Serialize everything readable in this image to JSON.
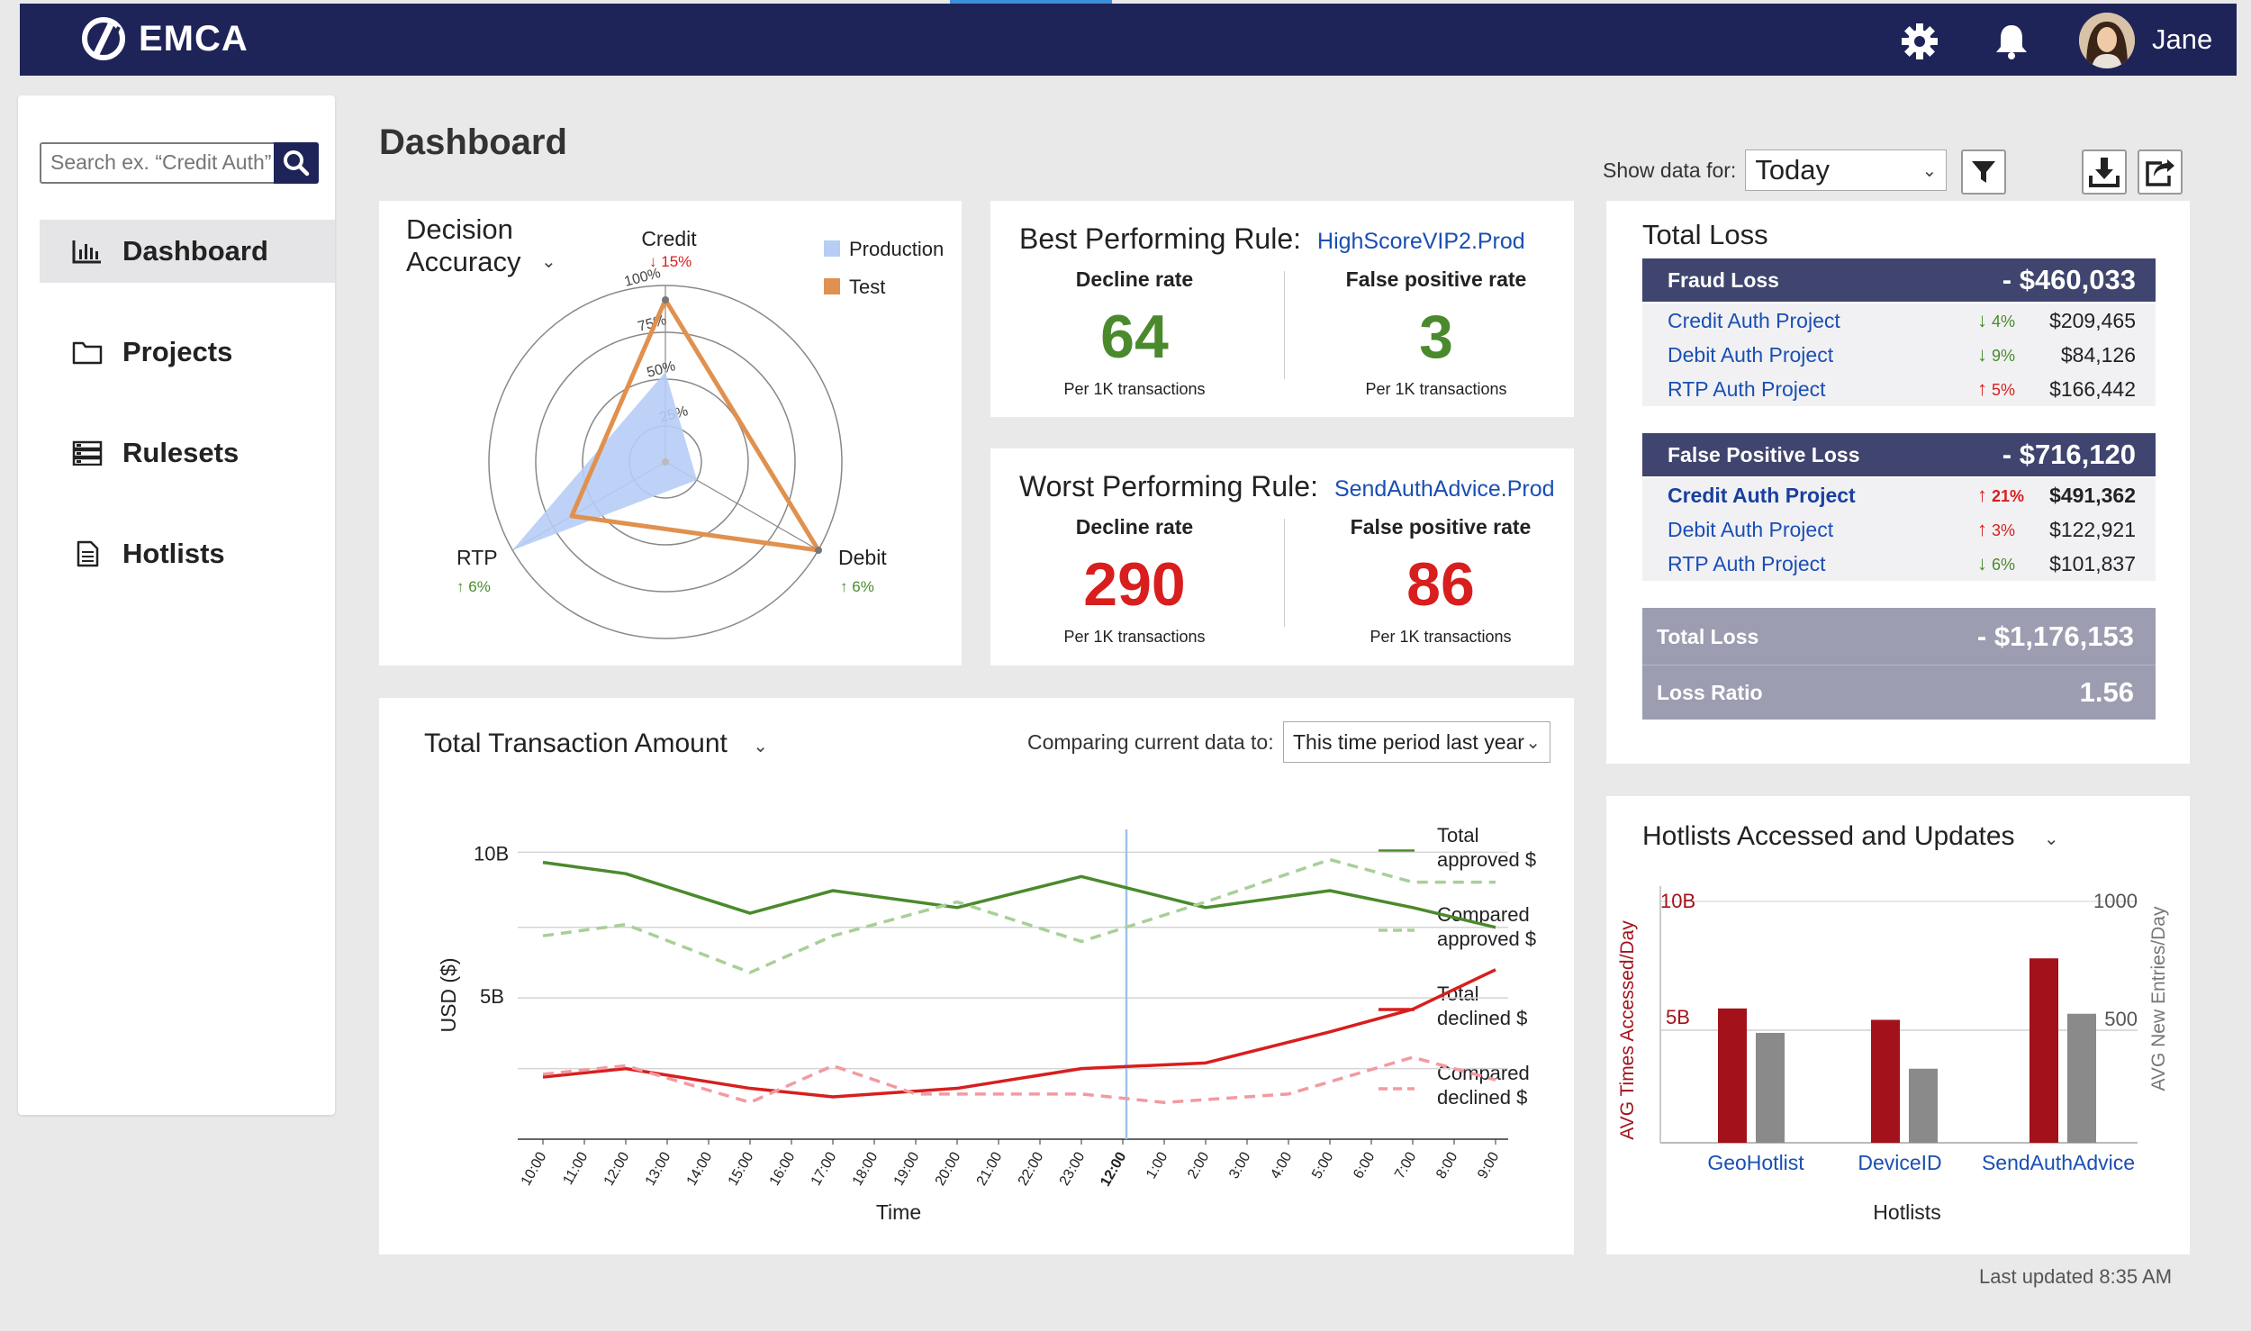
{
  "app": {
    "name": "EMCA",
    "user": "Jane"
  },
  "sidebar": {
    "search_placeholder": "Search ex. “Credit Auth”",
    "items": [
      {
        "label": "Dashboard"
      },
      {
        "label": "Projects"
      },
      {
        "label": "Rulesets"
      },
      {
        "label": "Hotlists"
      }
    ]
  },
  "page": {
    "title": "Dashboard",
    "footer": "Last updated 8:35 AM"
  },
  "filters": {
    "show_data_label": "Show data for:",
    "period": "Today"
  },
  "decision_accuracy": {
    "title": "Decision Accuracy",
    "axes": [
      {
        "name": "Credit",
        "change": "15%",
        "direction": "down"
      },
      {
        "name": "Debit",
        "change": "6%",
        "direction": "up"
      },
      {
        "name": "RTP",
        "change": "6%",
        "direction": "up"
      }
    ],
    "ticks": [
      "25%",
      "50%",
      "75%",
      "100%"
    ],
    "legend": [
      {
        "name": "Production",
        "color": "#b7cdf6"
      },
      {
        "name": "Test",
        "color": "#e0914f"
      }
    ],
    "chart_data": {
      "type": "radar",
      "axes": [
        "Credit",
        "Debit",
        "RTP"
      ],
      "series": [
        {
          "name": "Production",
          "values": [
            0.6,
            0.2,
            1.0
          ]
        },
        {
          "name": "Test",
          "values": [
            0.95,
            1.0,
            0.6
          ]
        }
      ]
    }
  },
  "best_rule": {
    "title": "Best Performing Rule:",
    "rule": "HighScoreVIP2.Prod",
    "metrics": [
      {
        "label": "Decline rate",
        "value": "64",
        "sub": "Per 1K transactions",
        "color": "#4a8a2c"
      },
      {
        "label": "False positive rate",
        "value": "3",
        "sub": "Per 1K transactions",
        "color": "#4a8a2c"
      }
    ]
  },
  "worst_rule": {
    "title": "Worst Performing Rule:",
    "rule": "SendAuthAdvice.Prod",
    "metrics": [
      {
        "label": "Decline rate",
        "value": "290",
        "sub": "Per 1K transactions",
        "color": "#d81e1e"
      },
      {
        "label": "False positive rate",
        "value": "86",
        "sub": "Per 1K transactions",
        "color": "#d81e1e"
      }
    ]
  },
  "total_loss": {
    "title": "Total Loss",
    "fraud": {
      "label": "Fraud Loss",
      "value": "- $460,033",
      "rows": [
        {
          "project": "Credit Auth Project",
          "dir": "down",
          "pct": "4%",
          "amount": "$209,465"
        },
        {
          "project": "Debit Auth Project",
          "dir": "down",
          "pct": "9%",
          "amount": "$84,126"
        },
        {
          "project": "RTP Auth Project",
          "dir": "up",
          "pct": "5%",
          "amount": "$166,442"
        }
      ]
    },
    "false_positive": {
      "label": "False Positive Loss",
      "value": "- $716,120",
      "rows": [
        {
          "project": "Credit Auth Project",
          "dir": "up",
          "pct": "21%",
          "amount": "$491,362"
        },
        {
          "project": "Debit Auth Project",
          "dir": "up",
          "pct": "3%",
          "amount": "$122,921"
        },
        {
          "project": "RTP Auth Project",
          "dir": "down",
          "pct": "6%",
          "amount": "$101,837"
        }
      ]
    },
    "total_label": "Total Loss",
    "total_value": "- $1,176,153",
    "ratio_label": "Loss Ratio",
    "ratio_value": "1.56"
  },
  "transactions": {
    "title": "Total Transaction Amount",
    "compare_label": "Comparing current data to:",
    "compare_value": "This time period last year",
    "chart_data": {
      "type": "line",
      "xlabel": "Time",
      "ylabel": "USD ($)",
      "yticks": [
        "10B",
        "5B"
      ],
      "ylim": [
        0,
        11
      ],
      "x": [
        "10:00",
        "11:00",
        "12:00",
        "13:00",
        "14:00",
        "15:00",
        "16:00",
        "17:00",
        "18:00",
        "19:00",
        "20:00",
        "21:00",
        "22:00",
        "23:00",
        "12:00",
        "1:00",
        "2:00",
        "3:00",
        "4:00",
        "5:00",
        "6:00",
        "7:00",
        "8:00",
        "9:00"
      ],
      "x_bold_label": "12:00",
      "marker_x": "12:00",
      "series": [
        {
          "name": "Total approved $",
          "color": "#4a8a2c",
          "dashed": false,
          "points": [
            [
              "10:00",
              9.8
            ],
            [
              "12:00",
              9.4
            ],
            [
              "15:00",
              8.0
            ],
            [
              "17:00",
              8.8
            ],
            [
              "20:00",
              8.2
            ],
            [
              "23:00",
              9.3
            ],
            [
              "2:00",
              8.2
            ],
            [
              "5:00",
              8.8
            ],
            [
              "7:00",
              8.2
            ],
            [
              "9:00",
              7.5
            ]
          ]
        },
        {
          "name": "Compared approved $",
          "color": "#a9cf97",
          "dashed": true,
          "points": [
            [
              "10:00",
              7.2
            ],
            [
              "12:00",
              7.6
            ],
            [
              "15:00",
              5.9
            ],
            [
              "17:00",
              7.2
            ],
            [
              "20:00",
              8.4
            ],
            [
              "23:00",
              7.0
            ],
            [
              "2:00",
              8.4
            ],
            [
              "5:00",
              9.9
            ],
            [
              "7:00",
              9.1
            ],
            [
              "9:00",
              9.1
            ]
          ]
        },
        {
          "name": "Total declined $",
          "color": "#d81e1e",
          "dashed": false,
          "points": [
            [
              "10:00",
              2.2
            ],
            [
              "12:00",
              2.5
            ],
            [
              "15:00",
              1.8
            ],
            [
              "17:00",
              1.5
            ],
            [
              "20:00",
              1.8
            ],
            [
              "23:00",
              2.5
            ],
            [
              "2:00",
              2.7
            ],
            [
              "5:00",
              3.8
            ],
            [
              "7:00",
              4.6
            ],
            [
              "9:00",
              6.0
            ]
          ]
        },
        {
          "name": "Compared declined $",
          "color": "#f29aa0",
          "dashed": true,
          "points": [
            [
              "10:00",
              2.3
            ],
            [
              "12:00",
              2.6
            ],
            [
              "15:00",
              1.3
            ],
            [
              "17:00",
              2.6
            ],
            [
              "19:00",
              1.6
            ],
            [
              "23:00",
              1.6
            ],
            [
              "1:00",
              1.3
            ],
            [
              "4:00",
              1.6
            ],
            [
              "7:00",
              2.9
            ],
            [
              "9:00",
              2.1
            ]
          ]
        }
      ]
    },
    "legend": [
      {
        "line1": "Total",
        "line2": "approved $"
      },
      {
        "line1": "Compared",
        "line2": "approved $"
      },
      {
        "line1": "Total",
        "line2": "declined $"
      },
      {
        "line1": "Compared",
        "line2": "declined $"
      }
    ]
  },
  "hotlists": {
    "title": "Hotlists Accessed and Updates",
    "chart_data": {
      "type": "bar",
      "categories": [
        "GeoHotlist",
        "DeviceID",
        "SendAuthAdvice"
      ],
      "xlabel": "Hotlists",
      "ylabel_left": "AVG Times Accessed/Day",
      "ylabel_right": "AVG New Entries/Day",
      "left_ticks": [
        "10B",
        "5B"
      ],
      "right_ticks": [
        "1000",
        "500"
      ],
      "series": [
        {
          "name": "AVG Times Accessed/Day",
          "color": "#a3121b",
          "axis": "left",
          "values": [
            5.9,
            5.4,
            8.1
          ]
        },
        {
          "name": "AVG New Entries/Day",
          "color": "#8a8a8a",
          "axis": "right",
          "values": [
            460,
            310,
            540
          ]
        }
      ]
    }
  }
}
